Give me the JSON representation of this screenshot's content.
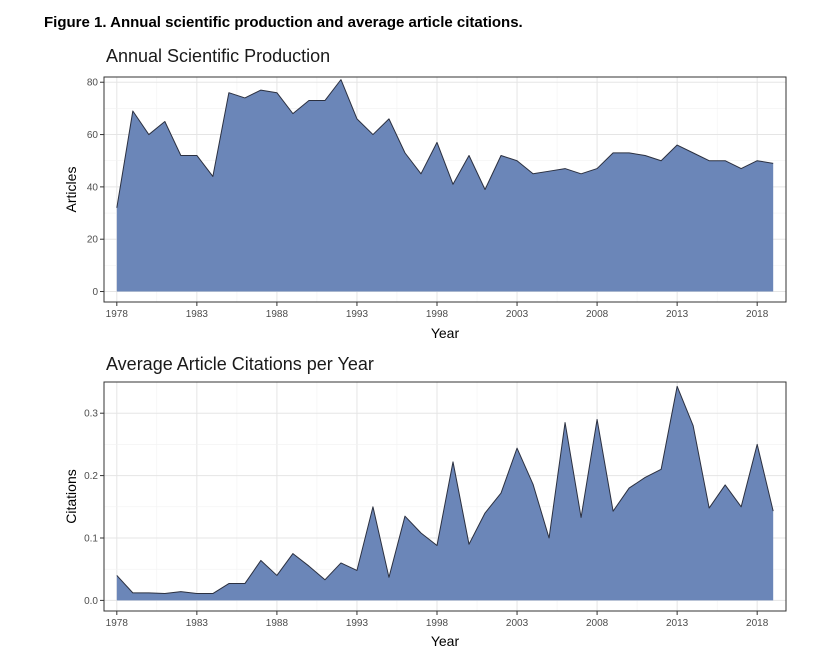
{
  "figure": {
    "caption": "Figure 1. Annual scientific production and average article citations."
  },
  "colors": {
    "area_fill": "#6B86B8",
    "area_line": "#2B3040"
  },
  "chart_data": [
    {
      "type": "area",
      "title": "Annual Scientific Production",
      "xlabel": "Year",
      "ylabel": "Articles",
      "xlim": [
        1977.2,
        2019.8
      ],
      "ylim": [
        -4,
        82
      ],
      "x_ticks": [
        1978,
        1983,
        1988,
        1993,
        1998,
        2003,
        2008,
        2013,
        2018
      ],
      "x_tick_labels": [
        "1978",
        "1983",
        "1988",
        "1993",
        "1998",
        "2003",
        "2008",
        "2013",
        "2018"
      ],
      "y_ticks": [
        0,
        20,
        40,
        60,
        80
      ],
      "y_tick_labels": [
        "0",
        "20",
        "40",
        "60",
        "80"
      ],
      "grid": true,
      "x": [
        1978,
        1979,
        1980,
        1981,
        1982,
        1983,
        1984,
        1985,
        1986,
        1987,
        1988,
        1989,
        1990,
        1991,
        1992,
        1993,
        1994,
        1995,
        1996,
        1997,
        1998,
        1999,
        2000,
        2001,
        2002,
        2003,
        2004,
        2005,
        2006,
        2007,
        2008,
        2009,
        2010,
        2011,
        2012,
        2013,
        2014,
        2015,
        2016,
        2017,
        2018,
        2019
      ],
      "y": [
        32,
        69,
        60,
        65,
        52,
        52,
        44,
        76,
        74,
        77,
        76,
        68,
        73,
        73,
        81,
        66,
        60,
        66,
        53,
        45,
        57,
        41,
        52,
        39,
        52,
        50,
        45,
        46,
        47,
        45,
        47,
        53,
        53,
        52,
        50,
        56,
        53,
        50,
        50,
        47,
        50,
        49
      ]
    },
    {
      "type": "area",
      "title": "Average Article Citations per Year",
      "xlabel": "Year",
      "ylabel": "Citations",
      "xlim": [
        1977.2,
        2019.8
      ],
      "ylim": [
        -0.017,
        0.35
      ],
      "x_ticks": [
        1978,
        1983,
        1988,
        1993,
        1998,
        2003,
        2008,
        2013,
        2018
      ],
      "x_tick_labels": [
        "1978",
        "1983",
        "1988",
        "1993",
        "1998",
        "2003",
        "2008",
        "2013",
        "2018"
      ],
      "y_ticks": [
        0.0,
        0.1,
        0.2,
        0.3
      ],
      "y_tick_labels": [
        "0.0",
        "0.1",
        "0.2",
        "0.3"
      ],
      "grid": true,
      "x": [
        1978,
        1979,
        1980,
        1981,
        1982,
        1983,
        1984,
        1985,
        1986,
        1987,
        1988,
        1989,
        1990,
        1991,
        1992,
        1993,
        1994,
        1995,
        1996,
        1997,
        1998,
        1999,
        2000,
        2001,
        2002,
        2003,
        2004,
        2005,
        2006,
        2007,
        2008,
        2009,
        2010,
        2011,
        2012,
        2013,
        2014,
        2015,
        2016,
        2017,
        2018,
        2019
      ],
      "y": [
        0.04,
        0.012,
        0.012,
        0.011,
        0.014,
        0.011,
        0.011,
        0.027,
        0.027,
        0.064,
        0.04,
        0.075,
        0.055,
        0.033,
        0.06,
        0.048,
        0.15,
        0.037,
        0.135,
        0.108,
        0.088,
        0.222,
        0.09,
        0.14,
        0.172,
        0.244,
        0.186,
        0.1,
        0.285,
        0.133,
        0.29,
        0.143,
        0.18,
        0.197,
        0.21,
        0.343,
        0.28,
        0.148,
        0.185,
        0.15,
        0.25,
        0.143
      ]
    }
  ]
}
